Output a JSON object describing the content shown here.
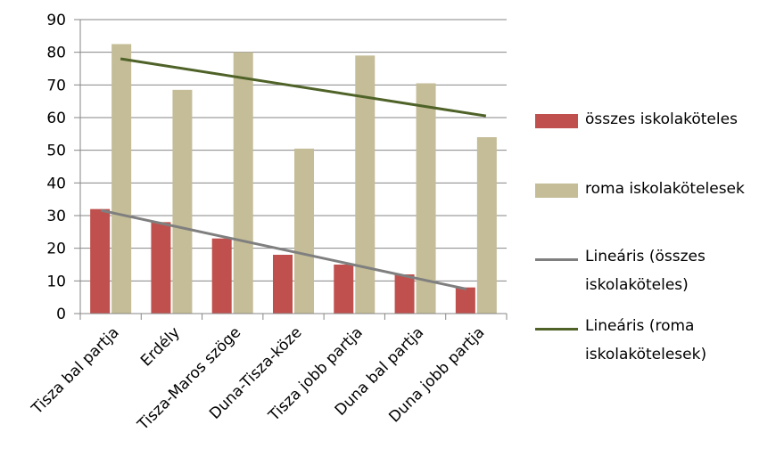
{
  "chart_data": {
    "type": "bar",
    "categories": [
      "Tisza bal partja",
      "Erdély",
      "Tisza-Maros szöge",
      "Duna-Tisza-köze",
      "Tisza jobb partja",
      "Duna bal partja",
      "Duna jobb partja"
    ],
    "series": [
      {
        "name": "összes iskolaköteles",
        "values": [
          32,
          28,
          23,
          18,
          15,
          12,
          8
        ],
        "color": "#c0504d"
      },
      {
        "name": "roma iskolakötelesek",
        "values": [
          82.5,
          68.5,
          80,
          50.5,
          79,
          70.5,
          54
        ],
        "color": "#c4bd97"
      }
    ],
    "trendlines": [
      {
        "name": "Lineáris (összes iskolaköteles)",
        "of_series": 0,
        "start": 31.6,
        "end": 7.5,
        "color": "#7f7f7f"
      },
      {
        "name": "Lineáris (roma iskolakötelesek)",
        "of_series": 1,
        "start": 78,
        "end": 60.5,
        "color": "#4f6228"
      }
    ],
    "ylim": [
      0,
      90
    ],
    "yticks": [
      0,
      10,
      20,
      30,
      40,
      50,
      60,
      70,
      80,
      90
    ],
    "grid": true,
    "legend_position": "right",
    "title": "",
    "xlabel": "",
    "ylabel": ""
  },
  "legend": {
    "items": [
      {
        "kind": "box",
        "lines": [
          "összes iskolaköteles"
        ],
        "color": "#c0504d"
      },
      {
        "kind": "box",
        "lines": [
          "roma iskolakötelesek"
        ],
        "color": "#c4bd97"
      },
      {
        "kind": "line",
        "lines": [
          "Lineáris (összes",
          "iskolaköteles)"
        ],
        "color": "#7f7f7f"
      },
      {
        "kind": "line",
        "lines": [
          "Lineáris (roma",
          "iskolakötelesek)"
        ],
        "color": "#4f6228"
      }
    ]
  }
}
